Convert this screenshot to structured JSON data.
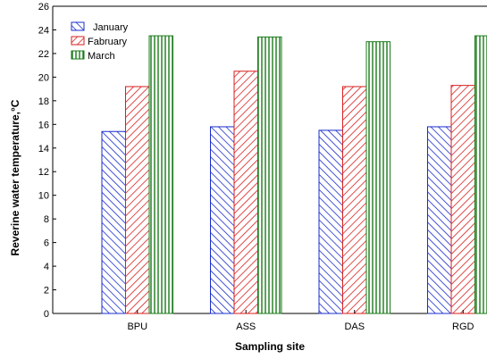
{
  "chart_data": {
    "type": "bar",
    "categories": [
      "BPU",
      "ASS",
      "DAS",
      "RGD"
    ],
    "series": [
      {
        "name": "January",
        "values": [
          15.4,
          15.8,
          15.5,
          15.8
        ],
        "color": "#1a2ccc",
        "pattern": "diagonal"
      },
      {
        "name": "Fabruary",
        "values": [
          19.2,
          20.5,
          19.2,
          19.3
        ],
        "color": "#d81e1e",
        "pattern": "diagonal"
      },
      {
        "name": "March",
        "values": [
          23.5,
          23.4,
          23.0,
          23.5
        ],
        "color": "#1a7a1a",
        "pattern": "vertical"
      }
    ],
    "xlabel": "Sampling site",
    "ylabel": "Reverine water temperature,°C",
    "ylim": [
      0,
      26
    ],
    "yticks": [
      0,
      2,
      4,
      6,
      8,
      10,
      12,
      14,
      16,
      18,
      20,
      22,
      24,
      26
    ],
    "grid": false,
    "legend_position": "top-left"
  }
}
